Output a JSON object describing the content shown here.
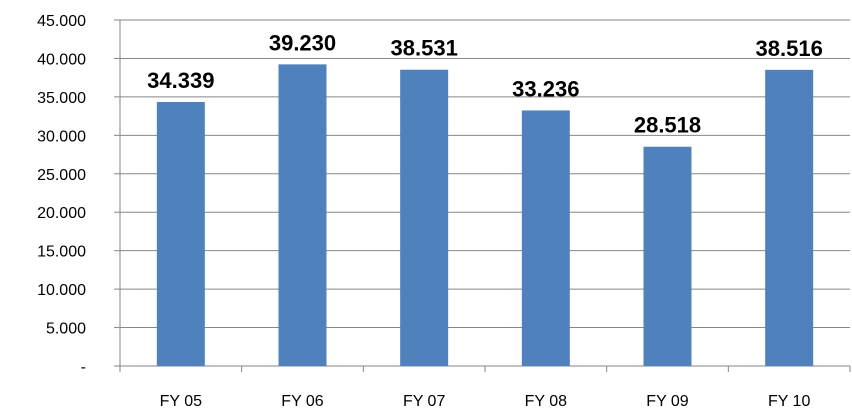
{
  "chart_data": {
    "type": "bar",
    "categories": [
      "FY 05",
      "FY 06",
      "FY 07",
      "FY 08",
      "FY 09",
      "FY 10"
    ],
    "values": [
      34.339,
      39.23,
      38.531,
      33.236,
      28.518,
      38.516
    ],
    "data_labels": [
      "34.339",
      "39.230",
      "38.531",
      "33.236",
      "28.518",
      "38.516"
    ],
    "ylim": [
      0,
      45
    ],
    "yticks": [
      0,
      5,
      10,
      15,
      20,
      25,
      30,
      35,
      40,
      45
    ],
    "ytick_labels": [
      "-",
      "5.000",
      "10.000",
      "15.000",
      "20.000",
      "25.000",
      "30.000",
      "35.000",
      "40.000",
      "45.000"
    ],
    "title": "",
    "xlabel": "",
    "ylabel": "",
    "grid": true,
    "legend": "none",
    "bar_color": "#4F81BD",
    "grid_color": "#868686"
  }
}
